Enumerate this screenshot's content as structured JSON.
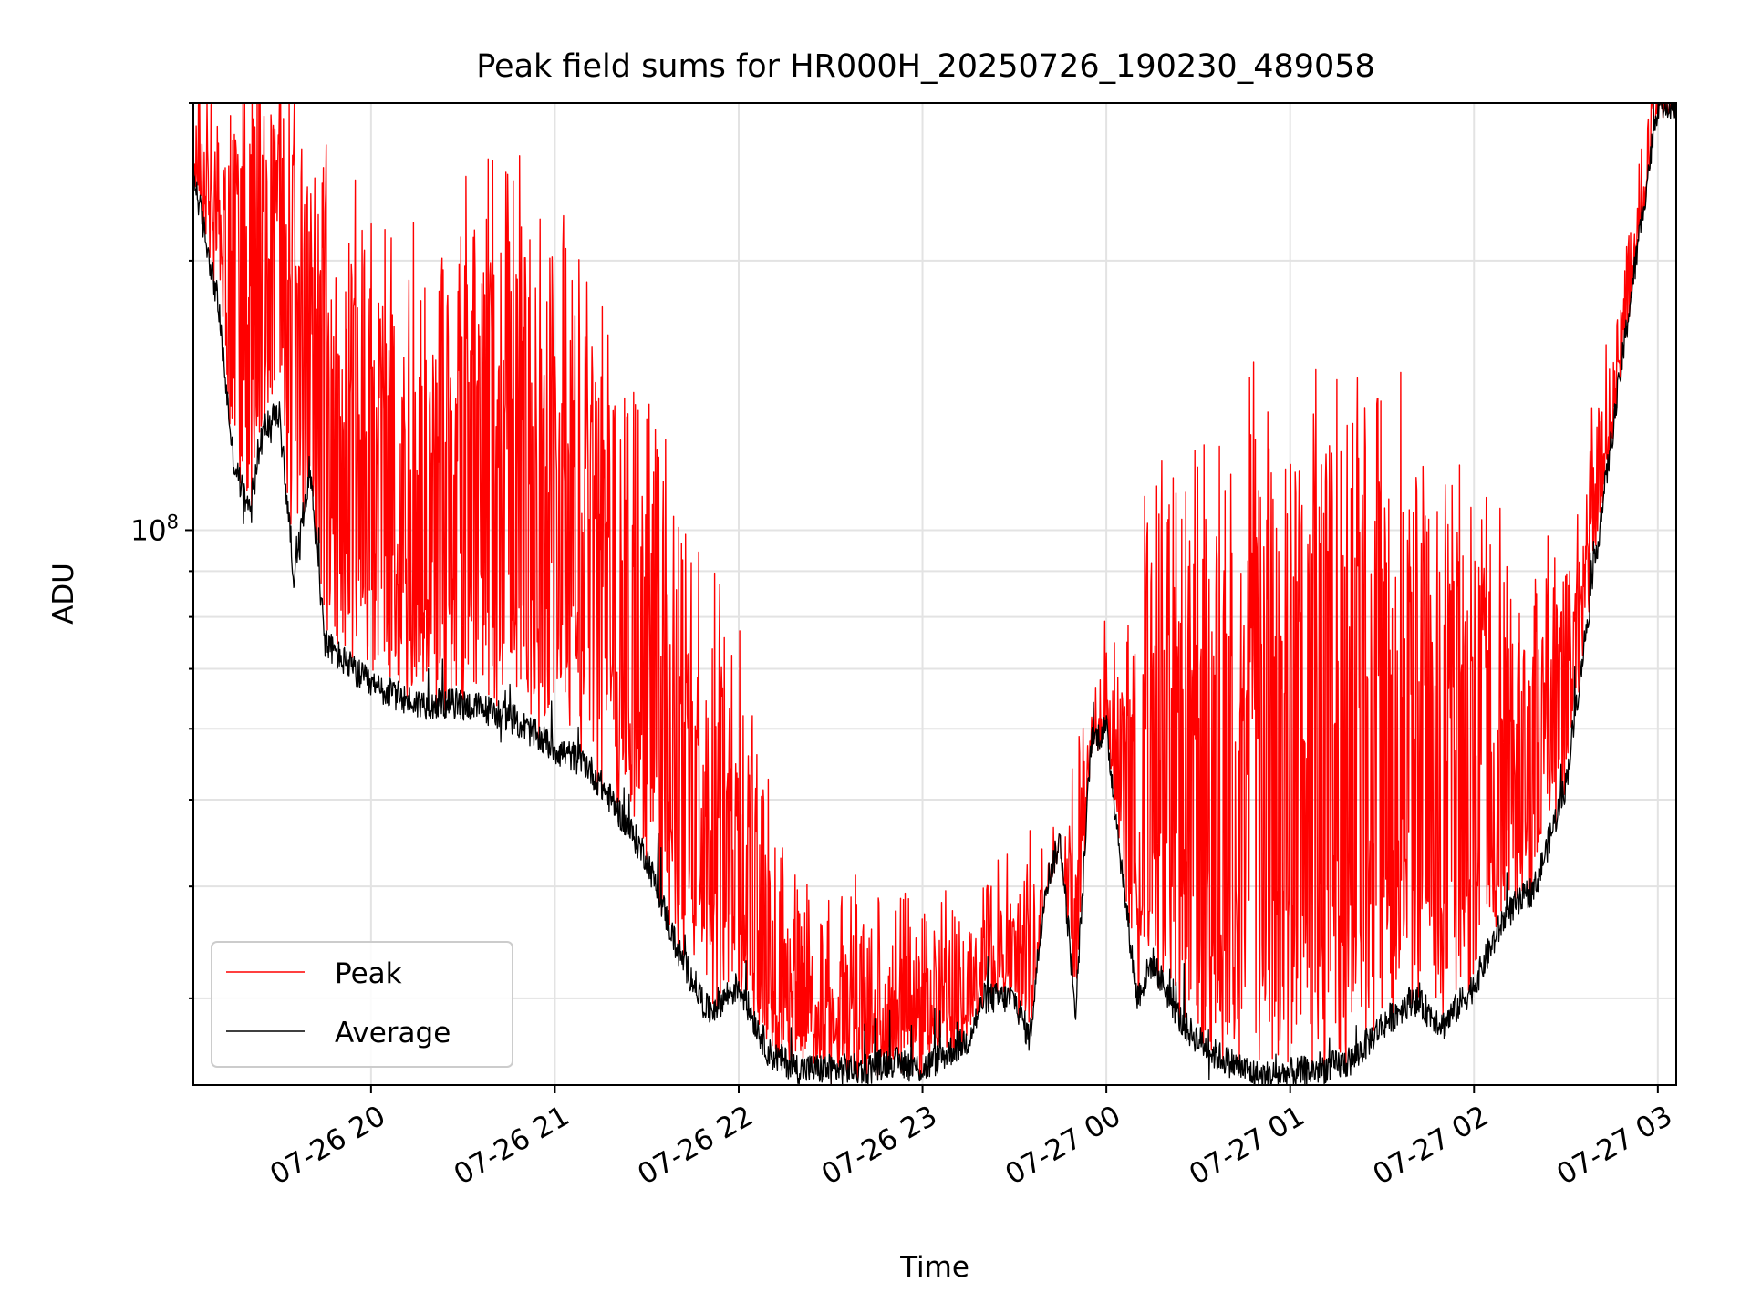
{
  "chart_data": {
    "type": "line",
    "title": "Peak field sums for HR000H_20250726_190230_489058",
    "xlabel": "Time",
    "ylabel": "ADU",
    "yscale": "log",
    "ylim": [
      24000000,
      300000000
    ],
    "xlim": [
      "2025-07-26 19:02",
      "2025-07-27 03:06"
    ],
    "x_ticks": [
      "07-26 20",
      "07-26 21",
      "07-26 22",
      "07-26 23",
      "07-27 00",
      "07-27 01",
      "07-27 02",
      "07-27 03"
    ],
    "y_tick_label": "10^8",
    "grid": true,
    "legend_position": "lower-left",
    "series": [
      {
        "name": "Peak",
        "color": "#ff0000",
        "x": [
          "2025-07-26 19:02",
          "2025-07-26 19:10",
          "2025-07-26 19:20",
          "2025-07-26 19:30",
          "2025-07-26 19:40",
          "2025-07-26 19:50",
          "2025-07-26 20:00",
          "2025-07-26 20:15",
          "2025-07-26 20:30",
          "2025-07-26 20:45",
          "2025-07-26 21:00",
          "2025-07-26 21:15",
          "2025-07-26 21:30",
          "2025-07-26 21:45",
          "2025-07-26 22:00",
          "2025-07-26 22:15",
          "2025-07-26 22:30",
          "2025-07-26 22:45",
          "2025-07-26 23:00",
          "2025-07-26 23:15",
          "2025-07-26 23:30",
          "2025-07-26 23:45",
          "2025-07-27 00:00",
          "2025-07-27 00:15",
          "2025-07-27 00:30",
          "2025-07-27 00:45",
          "2025-07-27 01:00",
          "2025-07-27 01:15",
          "2025-07-27 01:30",
          "2025-07-27 01:45",
          "2025-07-27 02:00",
          "2025-07-27 02:15",
          "2025-07-27 02:30",
          "2025-07-27 02:45",
          "2025-07-27 03:00"
        ],
        "values": [
          250000000,
          230000000,
          250000000,
          260000000,
          200000000,
          180000000,
          170000000,
          160000000,
          170000000,
          180000000,
          170000000,
          140000000,
          110000000,
          70000000,
          55000000,
          34000000,
          30000000,
          30000000,
          30000000,
          30000000,
          34000000,
          36000000,
          60000000,
          80000000,
          90000000,
          95000000,
          100000000,
          110000000,
          105000000,
          90000000,
          80000000,
          70000000,
          80000000,
          130000000,
          300000000
        ]
      },
      {
        "name": "Average",
        "color": "#000000",
        "x": [
          "2025-07-26 19:02",
          "2025-07-26 19:10",
          "2025-07-26 19:15",
          "2025-07-26 19:20",
          "2025-07-26 19:25",
          "2025-07-26 19:30",
          "2025-07-26 19:35",
          "2025-07-26 19:40",
          "2025-07-26 19:45",
          "2025-07-26 19:50",
          "2025-07-26 20:00",
          "2025-07-26 20:15",
          "2025-07-26 20:30",
          "2025-07-26 20:45",
          "2025-07-26 21:00",
          "2025-07-26 21:10",
          "2025-07-26 21:20",
          "2025-07-26 21:30",
          "2025-07-26 21:40",
          "2025-07-26 21:50",
          "2025-07-26 22:00",
          "2025-07-26 22:10",
          "2025-07-26 22:20",
          "2025-07-26 22:40",
          "2025-07-26 22:50",
          "2025-07-26 23:00",
          "2025-07-26 23:15",
          "2025-07-26 23:20",
          "2025-07-26 23:30",
          "2025-07-26 23:35",
          "2025-07-26 23:40",
          "2025-07-26 23:45",
          "2025-07-26 23:50",
          "2025-07-26 23:55",
          "2025-07-27 00:00",
          "2025-07-27 00:05",
          "2025-07-27 00:10",
          "2025-07-27 00:15",
          "2025-07-27 00:25",
          "2025-07-27 00:35",
          "2025-07-27 00:50",
          "2025-07-27 01:10",
          "2025-07-27 01:20",
          "2025-07-27 01:30",
          "2025-07-27 01:40",
          "2025-07-27 01:50",
          "2025-07-27 02:00",
          "2025-07-27 02:10",
          "2025-07-27 02:20",
          "2025-07-27 02:30",
          "2025-07-27 02:40",
          "2025-07-27 02:50",
          "2025-07-27 03:00"
        ],
        "values": [
          250000000,
          180000000,
          120000000,
          105000000,
          130000000,
          135000000,
          88000000,
          118000000,
          75000000,
          72000000,
          67000000,
          64000000,
          64000000,
          62000000,
          57000000,
          55000000,
          49000000,
          43000000,
          34000000,
          29000000,
          31000000,
          26000000,
          25000000,
          25000000,
          25500000,
          25000000,
          27000000,
          30000000,
          30000000,
          27000000,
          40000000,
          45000000,
          29000000,
          58000000,
          60000000,
          42000000,
          30000000,
          33000000,
          28000000,
          26000000,
          24500000,
          25000000,
          25500000,
          28000000,
          30000000,
          28000000,
          31000000,
          37000000,
          40000000,
          52000000,
          95000000,
          170000000,
          300000000
        ]
      }
    ]
  }
}
